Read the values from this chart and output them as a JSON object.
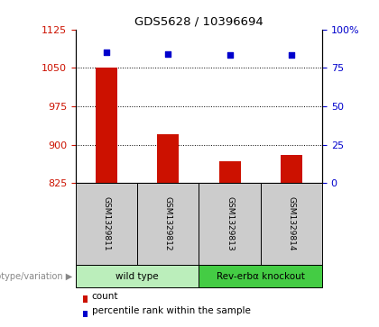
{
  "title": "GDS5628 / 10396694",
  "samples": [
    "GSM1329811",
    "GSM1329812",
    "GSM1329813",
    "GSM1329814"
  ],
  "counts": [
    1051,
    921,
    868,
    880
  ],
  "percentiles": [
    85,
    84,
    83.5,
    83.5
  ],
  "ylim_left": [
    825,
    1125
  ],
  "ylim_right": [
    0,
    100
  ],
  "yticks_left": [
    825,
    900,
    975,
    1050,
    1125
  ],
  "yticks_right": [
    0,
    25,
    50,
    75,
    100
  ],
  "bar_color": "#cc1100",
  "point_color": "#0000cc",
  "bar_baseline": 825,
  "groups": [
    {
      "label": "wild type",
      "indices": [
        0,
        1
      ],
      "color": "#bbeebb"
    },
    {
      "label": "Rev-erbα knockout",
      "indices": [
        2,
        3
      ],
      "color": "#44cc44"
    }
  ],
  "group_label": "genotype/variation",
  "legend_items": [
    {
      "color": "#cc1100",
      "label": "count"
    },
    {
      "color": "#0000cc",
      "label": "percentile rank within the sample"
    }
  ],
  "tick_color_left": "#cc1100",
  "tick_color_right": "#0000cc",
  "label_area_color": "#cccccc",
  "fig_width": 4.2,
  "fig_height": 3.63,
  "dpi": 100
}
